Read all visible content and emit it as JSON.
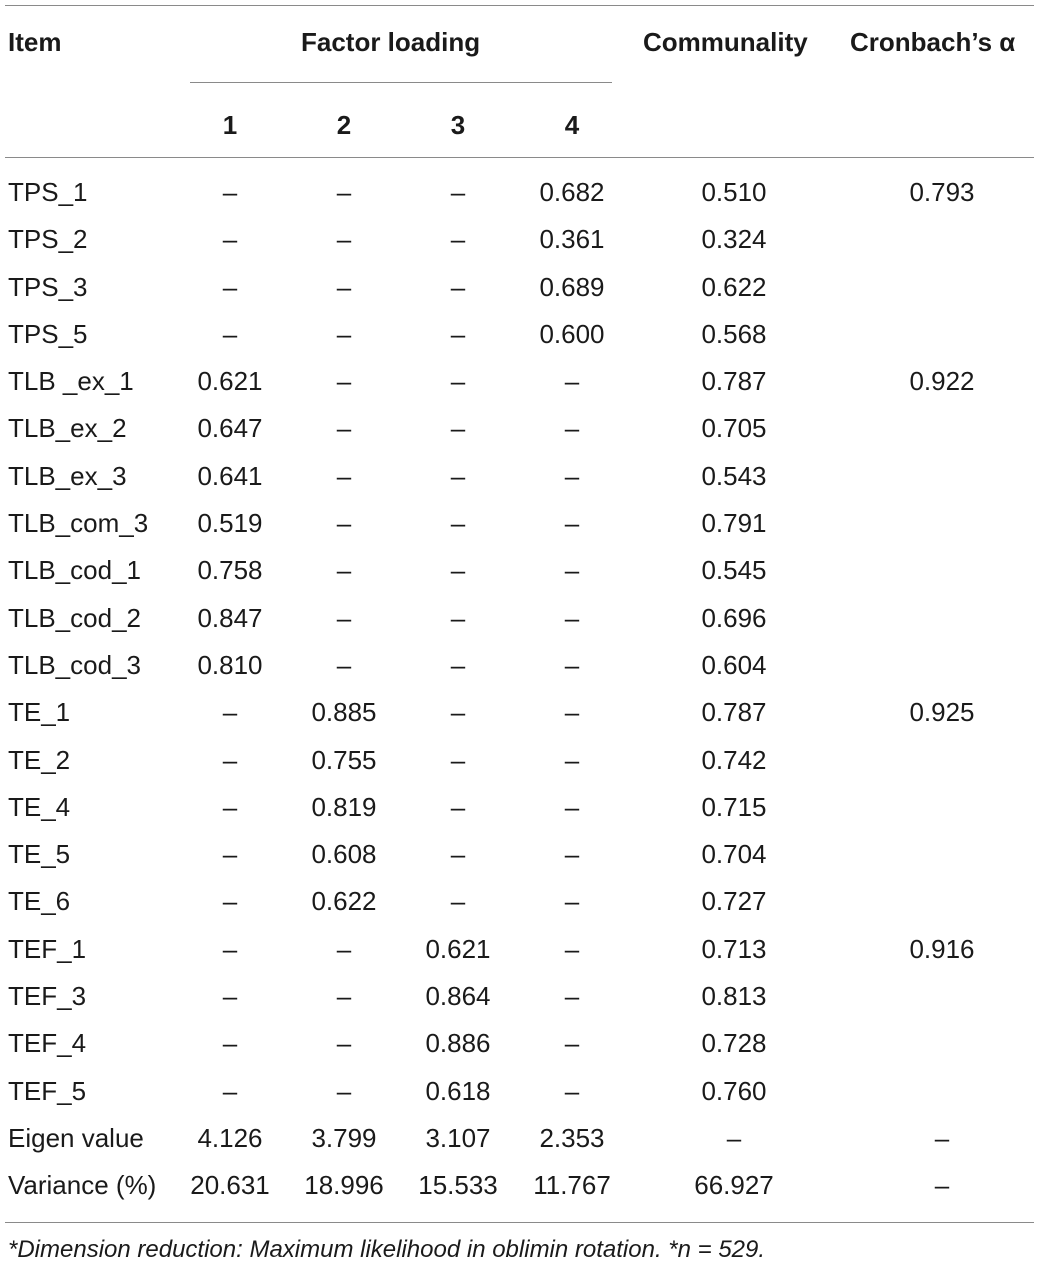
{
  "header": {
    "item": "Item",
    "factor_loading": "Factor loading",
    "communality": "Communality",
    "alpha": "Cronbach’s α",
    "factors": [
      "1",
      "2",
      "3",
      "4"
    ]
  },
  "rows": [
    {
      "item": "TPS_1",
      "f1": "–",
      "f2": "–",
      "f3": "–",
      "f4": "0.682",
      "comm": "0.510",
      "alpha": "0.793"
    },
    {
      "item": "TPS_2",
      "f1": "–",
      "f2": "–",
      "f3": "–",
      "f4": "0.361",
      "comm": "0.324",
      "alpha": ""
    },
    {
      "item": "TPS_3",
      "f1": "–",
      "f2": "–",
      "f3": "–",
      "f4": "0.689",
      "comm": "0.622",
      "alpha": ""
    },
    {
      "item": "TPS_5",
      "f1": "–",
      "f2": "–",
      "f3": "–",
      "f4": "0.600",
      "comm": "0.568",
      "alpha": ""
    },
    {
      "item": "TLB _ex_1",
      "f1": "0.621",
      "f2": "–",
      "f3": "–",
      "f4": "–",
      "comm": "0.787",
      "alpha": "0.922"
    },
    {
      "item": "TLB_ex_2",
      "f1": "0.647",
      "f2": "–",
      "f3": "–",
      "f4": "–",
      "comm": "0.705",
      "alpha": ""
    },
    {
      "item": "TLB_ex_3",
      "f1": "0.641",
      "f2": "–",
      "f3": "–",
      "f4": "–",
      "comm": "0.543",
      "alpha": ""
    },
    {
      "item": "TLB_com_3",
      "f1": "0.519",
      "f2": "–",
      "f3": "–",
      "f4": "–",
      "comm": "0.791",
      "alpha": ""
    },
    {
      "item": "TLB_cod_1",
      "f1": "0.758",
      "f2": "–",
      "f3": "–",
      "f4": "–",
      "comm": "0.545",
      "alpha": ""
    },
    {
      "item": "TLB_cod_2",
      "f1": "0.847",
      "f2": "–",
      "f3": "–",
      "f4": "–",
      "comm": "0.696",
      "alpha": ""
    },
    {
      "item": "TLB_cod_3",
      "f1": "0.810",
      "f2": "–",
      "f3": "–",
      "f4": "–",
      "comm": "0.604",
      "alpha": ""
    },
    {
      "item": "TE_1",
      "f1": "–",
      "f2": "0.885",
      "f3": "–",
      "f4": "–",
      "comm": "0.787",
      "alpha": "0.925"
    },
    {
      "item": "TE_2",
      "f1": "–",
      "f2": "0.755",
      "f3": "–",
      "f4": "–",
      "comm": "0.742",
      "alpha": ""
    },
    {
      "item": "TE_4",
      "f1": "–",
      "f2": "0.819",
      "f3": "–",
      "f4": "–",
      "comm": "0.715",
      "alpha": ""
    },
    {
      "item": "TE_5",
      "f1": "–",
      "f2": "0.608",
      "f3": "–",
      "f4": "–",
      "comm": "0.704",
      "alpha": ""
    },
    {
      "item": "TE_6",
      "f1": "–",
      "f2": "0.622",
      "f3": "–",
      "f4": "–",
      "comm": "0.727",
      "alpha": ""
    },
    {
      "item": "TEF_1",
      "f1": "–",
      "f2": "–",
      "f3": "0.621",
      "f4": "–",
      "comm": "0.713",
      "alpha": "0.916"
    },
    {
      "item": "TEF_3",
      "f1": "–",
      "f2": "–",
      "f3": "0.864",
      "f4": "–",
      "comm": "0.813",
      "alpha": ""
    },
    {
      "item": "TEF_4",
      "f1": "–",
      "f2": "–",
      "f3": "0.886",
      "f4": "–",
      "comm": "0.728",
      "alpha": ""
    },
    {
      "item": "TEF_5",
      "f1": "–",
      "f2": "–",
      "f3": "0.618",
      "f4": "–",
      "comm": "0.760",
      "alpha": ""
    },
    {
      "item": "Eigen value",
      "f1": "4.126",
      "f2": "3.799",
      "f3": "3.107",
      "f4": "2.353",
      "comm": "–",
      "alpha": "–"
    },
    {
      "item": "Variance (%)",
      "f1": "20.631",
      "f2": "18.996",
      "f3": "15.533",
      "f4": "11.767",
      "comm": "66.927",
      "alpha": "–"
    }
  ],
  "footnote": "*Dimension reduction: Maximum likelihood in oblimin rotation. *n = 529."
}
